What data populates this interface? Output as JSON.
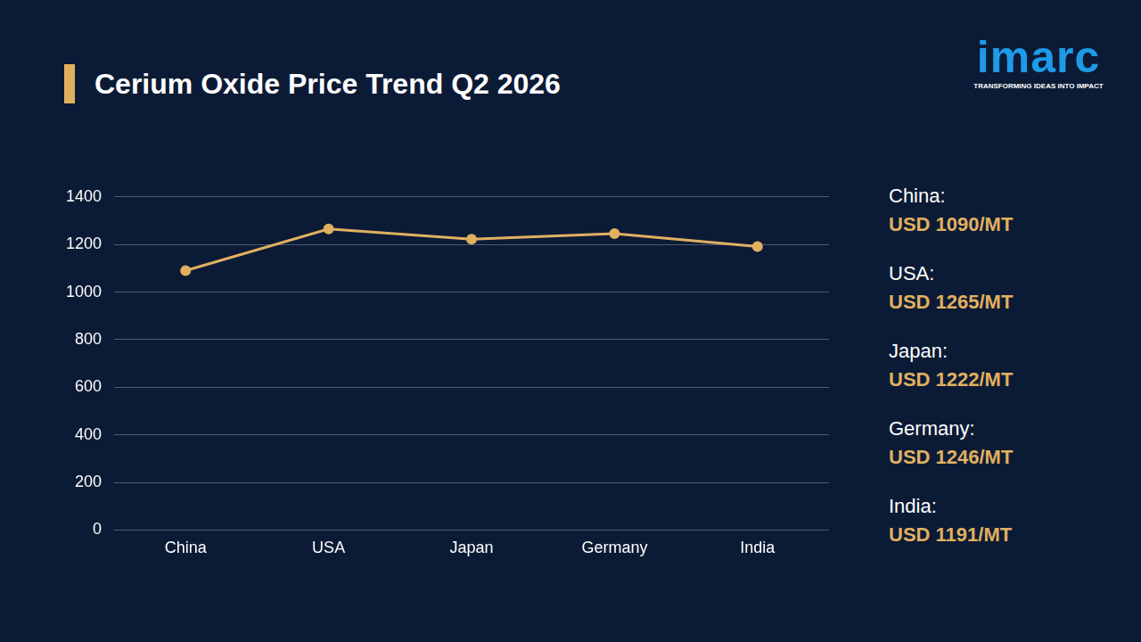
{
  "chart_data": {
    "type": "line",
    "title": "Cerium Oxide Price Trend Q2 2026",
    "categories": [
      "China",
      "USA",
      "Japan",
      "Germany",
      "India"
    ],
    "values": [
      1090,
      1265,
      1222,
      1246,
      1191
    ],
    "color": "#e0b060",
    "marker": "circle",
    "line_style": "solid",
    "ylim": [
      0,
      1400
    ],
    "yticks": [
      0,
      200,
      400,
      600,
      800,
      1000,
      1200,
      1400
    ],
    "grid": true,
    "annotations": [
      {
        "label": "China:",
        "text": "USD 1090/MT"
      },
      {
        "label": "USA:",
        "text": "USD 1265/MT"
      },
      {
        "label": "Japan:",
        "text": "USD 1222/MT"
      },
      {
        "label": "Germany:",
        "text": "USD 1246/MT"
      },
      {
        "label": "India:",
        "text": "USD 1191/MT"
      }
    ]
  },
  "logo": {
    "name": "imarc",
    "tagline": "TRANSFORMING IDEAS INTO IMPACT"
  }
}
